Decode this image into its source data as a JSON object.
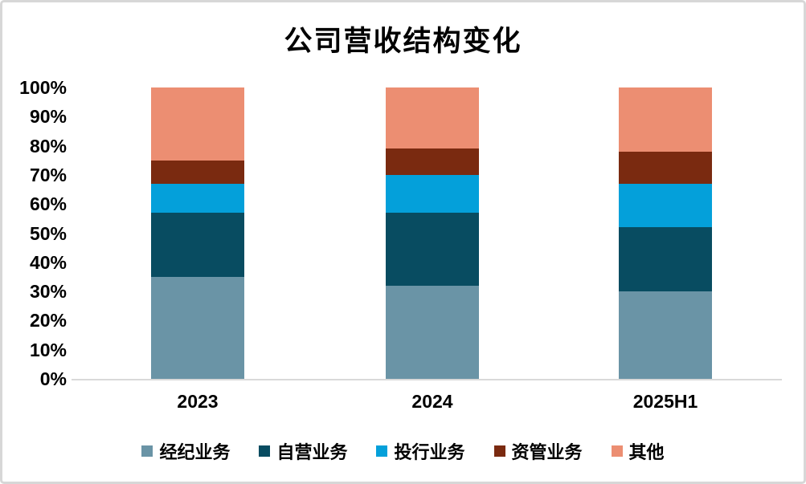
{
  "title": "公司营收结构变化",
  "axis": {
    "y_tick_labels": [
      "0%",
      "10%",
      "20%",
      "30%",
      "40%",
      "50%",
      "60%",
      "70%",
      "80%",
      "90%",
      "100%"
    ]
  },
  "chart_data": {
    "type": "bar",
    "stacked": true,
    "percent_stacked": true,
    "title": "公司营收结构变化",
    "categories": [
      "2023",
      "2024",
      "2025H1"
    ],
    "series": [
      {
        "name": "经纪业务",
        "color": "#6A94A6",
        "values": [
          35,
          32,
          30
        ]
      },
      {
        "name": "自营业务",
        "color": "#084C61",
        "values": [
          22,
          25,
          22
        ]
      },
      {
        "name": "投行业务",
        "color": "#04A0DA",
        "values": [
          10,
          13,
          15
        ]
      },
      {
        "name": "资管业务",
        "color": "#7A2A10",
        "values": [
          8,
          9,
          11
        ]
      },
      {
        "name": "其他",
        "color": "#EC8E72",
        "values": [
          25,
          21,
          22
        ]
      }
    ],
    "xlabel": "",
    "ylabel": "",
    "ylim": [
      0,
      100
    ],
    "y_tick_step": 10,
    "grid": false,
    "legend_position": "bottom",
    "axis_line_color": "#D9D9D9",
    "text_color": "#000000"
  }
}
